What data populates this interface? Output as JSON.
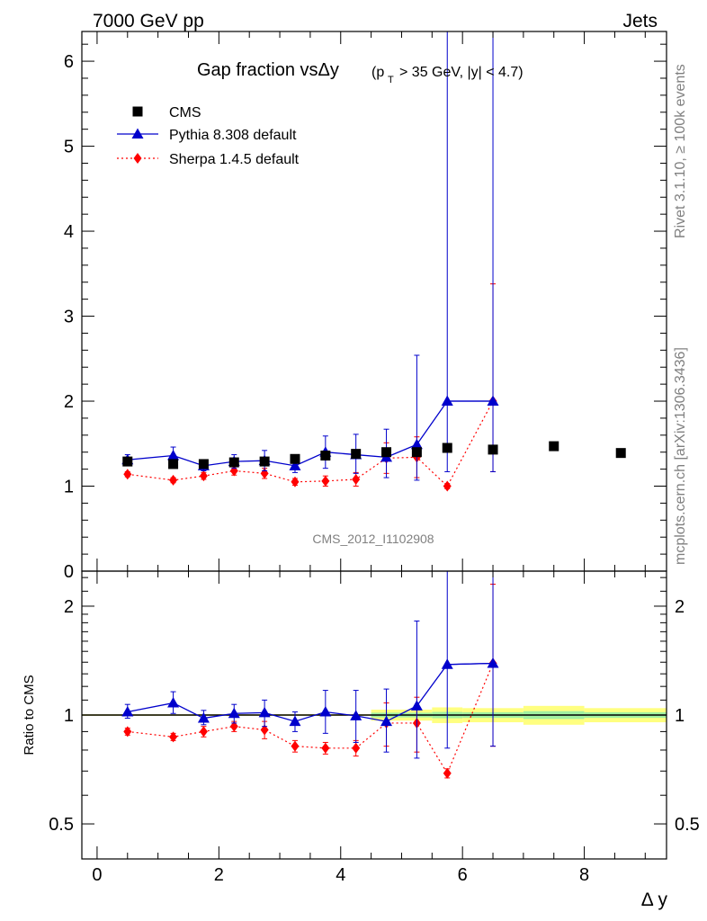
{
  "header": {
    "left": "7000 GeV pp",
    "right": "Jets"
  },
  "side": {
    "rivet": "Rivet 3.1.10, ≥ 100k events",
    "mcplots": "mcplots.cern.ch [arXiv:1306.3436]"
  },
  "chart_data": [
    {
      "type": "scatter",
      "title": "Gap fraction vsΔy",
      "title_cut": "(p_T > 35 GeV, |y| < 4.7)",
      "title_pt": "(p",
      "title_sub": "T",
      "title_rest": "> 35 GeV, |y| < 4.7)",
      "analysis_label": "CMS_2012_I1102908",
      "xlabel": "Δ y",
      "ylabel": "",
      "xlim": [
        -0.25,
        9.35
      ],
      "ylim": [
        0,
        6.35
      ],
      "yticks": [
        0,
        1,
        2,
        3,
        4,
        5,
        6
      ],
      "xticks": [
        0,
        2,
        4,
        6,
        8
      ],
      "legend_position": "top-left",
      "series": [
        {
          "name": "CMS",
          "color": "#000000",
          "marker": "square",
          "points": [
            {
              "x": 0.5,
              "y": 1.29
            },
            {
              "x": 1.25,
              "y": 1.26
            },
            {
              "x": 1.75,
              "y": 1.26
            },
            {
              "x": 2.25,
              "y": 1.28
            },
            {
              "x": 2.75,
              "y": 1.29
            },
            {
              "x": 3.25,
              "y": 1.32
            },
            {
              "x": 3.75,
              "y": 1.36
            },
            {
              "x": 4.25,
              "y": 1.38
            },
            {
              "x": 4.75,
              "y": 1.4
            },
            {
              "x": 5.25,
              "y": 1.4
            },
            {
              "x": 5.75,
              "y": 1.45
            },
            {
              "x": 6.5,
              "y": 1.43
            },
            {
              "x": 7.5,
              "y": 1.47
            },
            {
              "x": 8.6,
              "y": 1.39
            }
          ]
        },
        {
          "name": "Pythia 8.308 default",
          "color": "#0000cc",
          "marker": "triangle",
          "style": "solid",
          "points": [
            {
              "x": 0.5,
              "y": 1.31,
              "lo": 1.25,
              "hi": 1.37,
              "xlo": 0.0,
              "xhi": 1.0
            },
            {
              "x": 1.25,
              "y": 1.36,
              "lo": 1.26,
              "hi": 1.46,
              "xlo": 1.0,
              "xhi": 1.5
            },
            {
              "x": 1.75,
              "y": 1.24,
              "lo": 1.18,
              "hi": 1.3,
              "xlo": 1.5,
              "xhi": 2.0
            },
            {
              "x": 2.25,
              "y": 1.29,
              "lo": 1.21,
              "hi": 1.37,
              "xlo": 2.0,
              "xhi": 2.5
            },
            {
              "x": 2.75,
              "y": 1.3,
              "lo": 1.18,
              "hi": 1.42,
              "xlo": 2.5,
              "xhi": 3.0
            },
            {
              "x": 3.25,
              "y": 1.24,
              "lo": 1.16,
              "hi": 1.34,
              "xlo": 3.0,
              "xhi": 3.5
            },
            {
              "x": 3.75,
              "y": 1.4,
              "lo": 1.21,
              "hi": 1.59,
              "xlo": 3.5,
              "xhi": 4.0
            },
            {
              "x": 4.25,
              "y": 1.37,
              "lo": 1.15,
              "hi": 1.61,
              "xlo": 4.0,
              "xhi": 4.5
            },
            {
              "x": 4.75,
              "y": 1.34,
              "lo": 1.1,
              "hi": 1.67,
              "xlo": 4.5,
              "xhi": 5.0
            },
            {
              "x": 5.25,
              "y": 1.49,
              "lo": 1.07,
              "hi": 2.54,
              "xlo": 5.0,
              "xhi": 5.5
            },
            {
              "x": 5.75,
              "y": 2.0,
              "lo": 1.17,
              "hi": 6.35,
              "xlo": 5.5,
              "xhi": 6.0
            },
            {
              "x": 6.5,
              "y": 2.0,
              "lo": 1.17,
              "hi": 6.35,
              "xlo": 6.0,
              "xhi": 6.5
            }
          ]
        },
        {
          "name": "Sherpa 1.4.5 default",
          "color": "#ff0000",
          "marker": "diamond",
          "style": "dotted",
          "points": [
            {
              "x": 0.5,
              "y": 1.14,
              "lo": 1.11,
              "hi": 1.17
            },
            {
              "x": 1.25,
              "y": 1.07,
              "lo": 1.04,
              "hi": 1.1
            },
            {
              "x": 1.75,
              "y": 1.12,
              "lo": 1.08,
              "hi": 1.16
            },
            {
              "x": 2.25,
              "y": 1.18,
              "lo": 1.13,
              "hi": 1.23
            },
            {
              "x": 2.75,
              "y": 1.15,
              "lo": 1.09,
              "hi": 1.21
            },
            {
              "x": 3.25,
              "y": 1.05,
              "lo": 1.01,
              "hi": 1.09
            },
            {
              "x": 3.75,
              "y": 1.06,
              "lo": 1.0,
              "hi": 1.12
            },
            {
              "x": 4.25,
              "y": 1.08,
              "lo": 1.0,
              "hi": 1.16
            },
            {
              "x": 4.75,
              "y": 1.33,
              "lo": 1.15,
              "hi": 1.51
            },
            {
              "x": 5.25,
              "y": 1.34,
              "lo": 1.1,
              "hi": 1.58
            },
            {
              "x": 5.75,
              "y": 1.0,
              "lo": 0.97,
              "hi": 1.03
            },
            {
              "x": 6.5,
              "y": 2.0,
              "lo": 1.17,
              "hi": 3.38
            }
          ]
        }
      ]
    },
    {
      "type": "scatter",
      "title": "",
      "ylabel": "Ratio to CMS",
      "xlabel": "Δ y",
      "yscale": "log",
      "ylim": [
        0.4,
        2.5
      ],
      "yticks": [
        0.5,
        1,
        2
      ],
      "ytick_labels": [
        "0.5",
        "1",
        "2"
      ],
      "xticks": [
        0,
        2,
        4,
        6,
        8
      ],
      "xtick_labels": [
        "0",
        "2",
        "4",
        "6",
        "8"
      ],
      "reference_line": 1,
      "band_color": "#ffff80",
      "band_inner_color": "#a0f0a0",
      "band": [
        {
          "xlo": -0.25,
          "xhi": 4.5,
          "lo": 0.995,
          "hi": 1.005,
          "ilo": 0.998,
          "ihi": 1.002
        },
        {
          "xlo": 4.5,
          "xhi": 5.5,
          "lo": 0.965,
          "hi": 1.035,
          "ilo": 0.985,
          "ihi": 1.015
        },
        {
          "xlo": 5.5,
          "xhi": 6.0,
          "lo": 0.95,
          "hi": 1.05,
          "ilo": 0.98,
          "ihi": 1.02
        },
        {
          "xlo": 6.0,
          "xhi": 7.0,
          "lo": 0.955,
          "hi": 1.045,
          "ilo": 0.982,
          "ihi": 1.018
        },
        {
          "xlo": 7.0,
          "xhi": 8.0,
          "lo": 0.94,
          "hi": 1.06,
          "ilo": 0.975,
          "ihi": 1.025
        },
        {
          "xlo": 8.0,
          "xhi": 9.35,
          "lo": 0.955,
          "hi": 1.045,
          "ilo": 0.982,
          "ihi": 1.018
        }
      ],
      "series": [
        {
          "name": "Pythia 8.308 default",
          "color": "#0000cc",
          "marker": "triangle",
          "style": "solid",
          "points": [
            {
              "x": 0.5,
              "y": 1.02,
              "lo": 0.98,
              "hi": 1.07,
              "xlo": 0.0,
              "xhi": 1.0
            },
            {
              "x": 1.25,
              "y": 1.08,
              "lo": 1.01,
              "hi": 1.16,
              "xlo": 1.0,
              "xhi": 1.5
            },
            {
              "x": 1.75,
              "y": 0.98,
              "lo": 0.94,
              "hi": 1.03,
              "xlo": 1.5,
              "xhi": 2.0
            },
            {
              "x": 2.25,
              "y": 1.01,
              "lo": 0.95,
              "hi": 1.07,
              "xlo": 2.0,
              "xhi": 2.5
            },
            {
              "x": 2.75,
              "y": 1.015,
              "lo": 0.93,
              "hi": 1.1,
              "xlo": 2.5,
              "xhi": 3.0
            },
            {
              "x": 3.25,
              "y": 0.96,
              "lo": 0.9,
              "hi": 1.02,
              "xlo": 3.0,
              "xhi": 3.5
            },
            {
              "x": 3.75,
              "y": 1.02,
              "lo": 0.89,
              "hi": 1.17,
              "xlo": 3.5,
              "xhi": 4.0
            },
            {
              "x": 4.25,
              "y": 0.995,
              "lo": 0.84,
              "hi": 1.17,
              "xlo": 4.0,
              "xhi": 4.5
            },
            {
              "x": 4.75,
              "y": 0.96,
              "lo": 0.79,
              "hi": 1.18,
              "xlo": 4.5,
              "xhi": 5.0
            },
            {
              "x": 5.25,
              "y": 1.06,
              "lo": 0.76,
              "hi": 1.82,
              "xlo": 5.0,
              "xhi": 5.5
            },
            {
              "x": 5.75,
              "y": 1.38,
              "lo": 0.81,
              "hi": 2.5,
              "xlo": 5.5,
              "xhi": 6.0
            },
            {
              "x": 6.5,
              "y": 1.39,
              "lo": 0.82,
              "hi": 2.5,
              "xlo": 6.0,
              "xhi": 6.5
            }
          ]
        },
        {
          "name": "Sherpa 1.4.5 default",
          "color": "#ff0000",
          "marker": "diamond",
          "style": "dotted",
          "points": [
            {
              "x": 0.5,
              "y": 0.9,
              "lo": 0.88,
              "hi": 0.92
            },
            {
              "x": 1.25,
              "y": 0.87,
              "lo": 0.85,
              "hi": 0.89
            },
            {
              "x": 1.75,
              "y": 0.9,
              "lo": 0.87,
              "hi": 0.93
            },
            {
              "x": 2.25,
              "y": 0.93,
              "lo": 0.9,
              "hi": 0.96
            },
            {
              "x": 2.75,
              "y": 0.91,
              "lo": 0.86,
              "hi": 0.96
            },
            {
              "x": 3.25,
              "y": 0.82,
              "lo": 0.79,
              "hi": 0.85
            },
            {
              "x": 3.75,
              "y": 0.81,
              "lo": 0.78,
              "hi": 0.84
            },
            {
              "x": 4.25,
              "y": 0.81,
              "lo": 0.77,
              "hi": 0.85
            },
            {
              "x": 4.75,
              "y": 0.95,
              "lo": 0.82,
              "hi": 1.08
            },
            {
              "x": 5.25,
              "y": 0.95,
              "lo": 0.79,
              "hi": 1.12
            },
            {
              "x": 5.75,
              "y": 0.69,
              "lo": 0.67,
              "hi": 0.71
            },
            {
              "x": 6.5,
              "y": 1.39,
              "lo": 0.82,
              "hi": 2.3
            }
          ]
        }
      ]
    }
  ]
}
